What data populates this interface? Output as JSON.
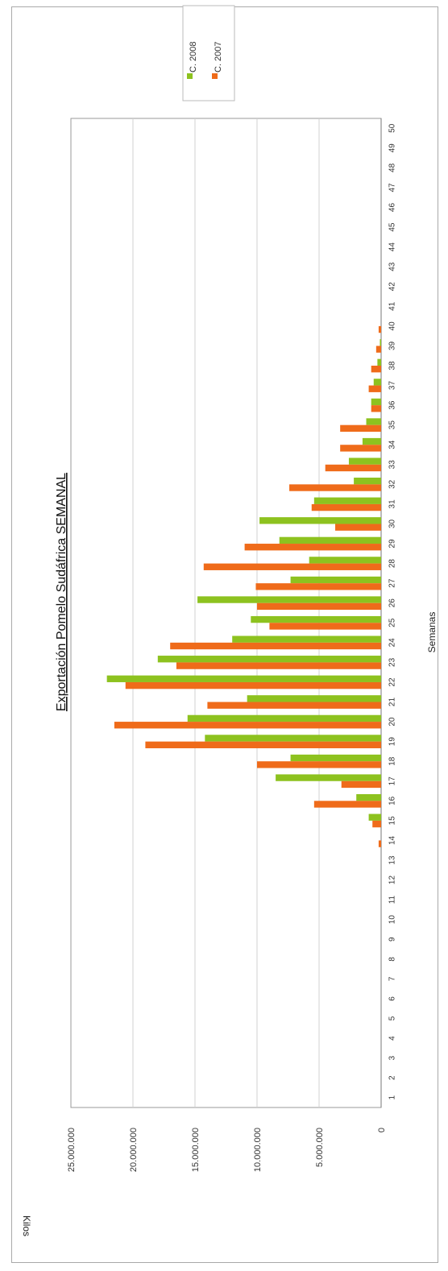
{
  "chart_data": {
    "type": "bar",
    "orientation": "rotated-90",
    "title": "Exportación Pomelo Sudáfrica SEMANAL",
    "xlabel": "Semanas",
    "ylabel": "Kilos",
    "ylim": [
      0,
      25000000
    ],
    "y_ticks": [
      "0",
      "5.000.000",
      "10.000.000",
      "15.000.000",
      "20.000.000",
      "25.000.000"
    ],
    "y_tick_values": [
      0,
      5000000,
      10000000,
      15000000,
      20000000,
      25000000
    ],
    "grid": true,
    "legend_position": "top-right",
    "categories": [
      "1",
      "2",
      "3",
      "4",
      "5",
      "6",
      "7",
      "8",
      "9",
      "10",
      "11",
      "12",
      "13",
      "14",
      "15",
      "16",
      "17",
      "18",
      "19",
      "20",
      "21",
      "22",
      "23",
      "24",
      "25",
      "26",
      "27",
      "28",
      "29",
      "30",
      "31",
      "32",
      "33",
      "34",
      "35",
      "36",
      "37",
      "38",
      "39",
      "40",
      "41",
      "42",
      "43",
      "44",
      "45",
      "46",
      "47",
      "48",
      "49",
      "50"
    ],
    "series": [
      {
        "name": "C. 2008",
        "color": "#8dc21f",
        "values": [
          0,
          0,
          0,
          0,
          0,
          0,
          0,
          0,
          0,
          0,
          0,
          0,
          0,
          0,
          1000000,
          2000000,
          8500000,
          7300000,
          14200000,
          15600000,
          10800000,
          22100000,
          18000000,
          12000000,
          10500000,
          14800000,
          7300000,
          5800000,
          8200000,
          9800000,
          5400000,
          2200000,
          2600000,
          1500000,
          1200000,
          800000,
          600000,
          300000,
          100000,
          0,
          0,
          0,
          0,
          0,
          0,
          0,
          0,
          0,
          0,
          0
        ]
      },
      {
        "name": "C. 2007",
        "color": "#ef6b1a",
        "values": [
          0,
          0,
          0,
          0,
          0,
          0,
          0,
          0,
          0,
          0,
          0,
          0,
          0,
          200000,
          700000,
          5400000,
          3200000,
          10000000,
          19000000,
          21500000,
          14000000,
          20600000,
          16500000,
          17000000,
          9000000,
          10000000,
          10100000,
          14300000,
          11000000,
          3700000,
          5600000,
          7400000,
          4500000,
          3300000,
          3300000,
          800000,
          1000000,
          800000,
          400000,
          200000,
          0,
          0,
          0,
          0,
          0,
          0,
          0,
          0,
          0,
          0
        ]
      }
    ]
  }
}
